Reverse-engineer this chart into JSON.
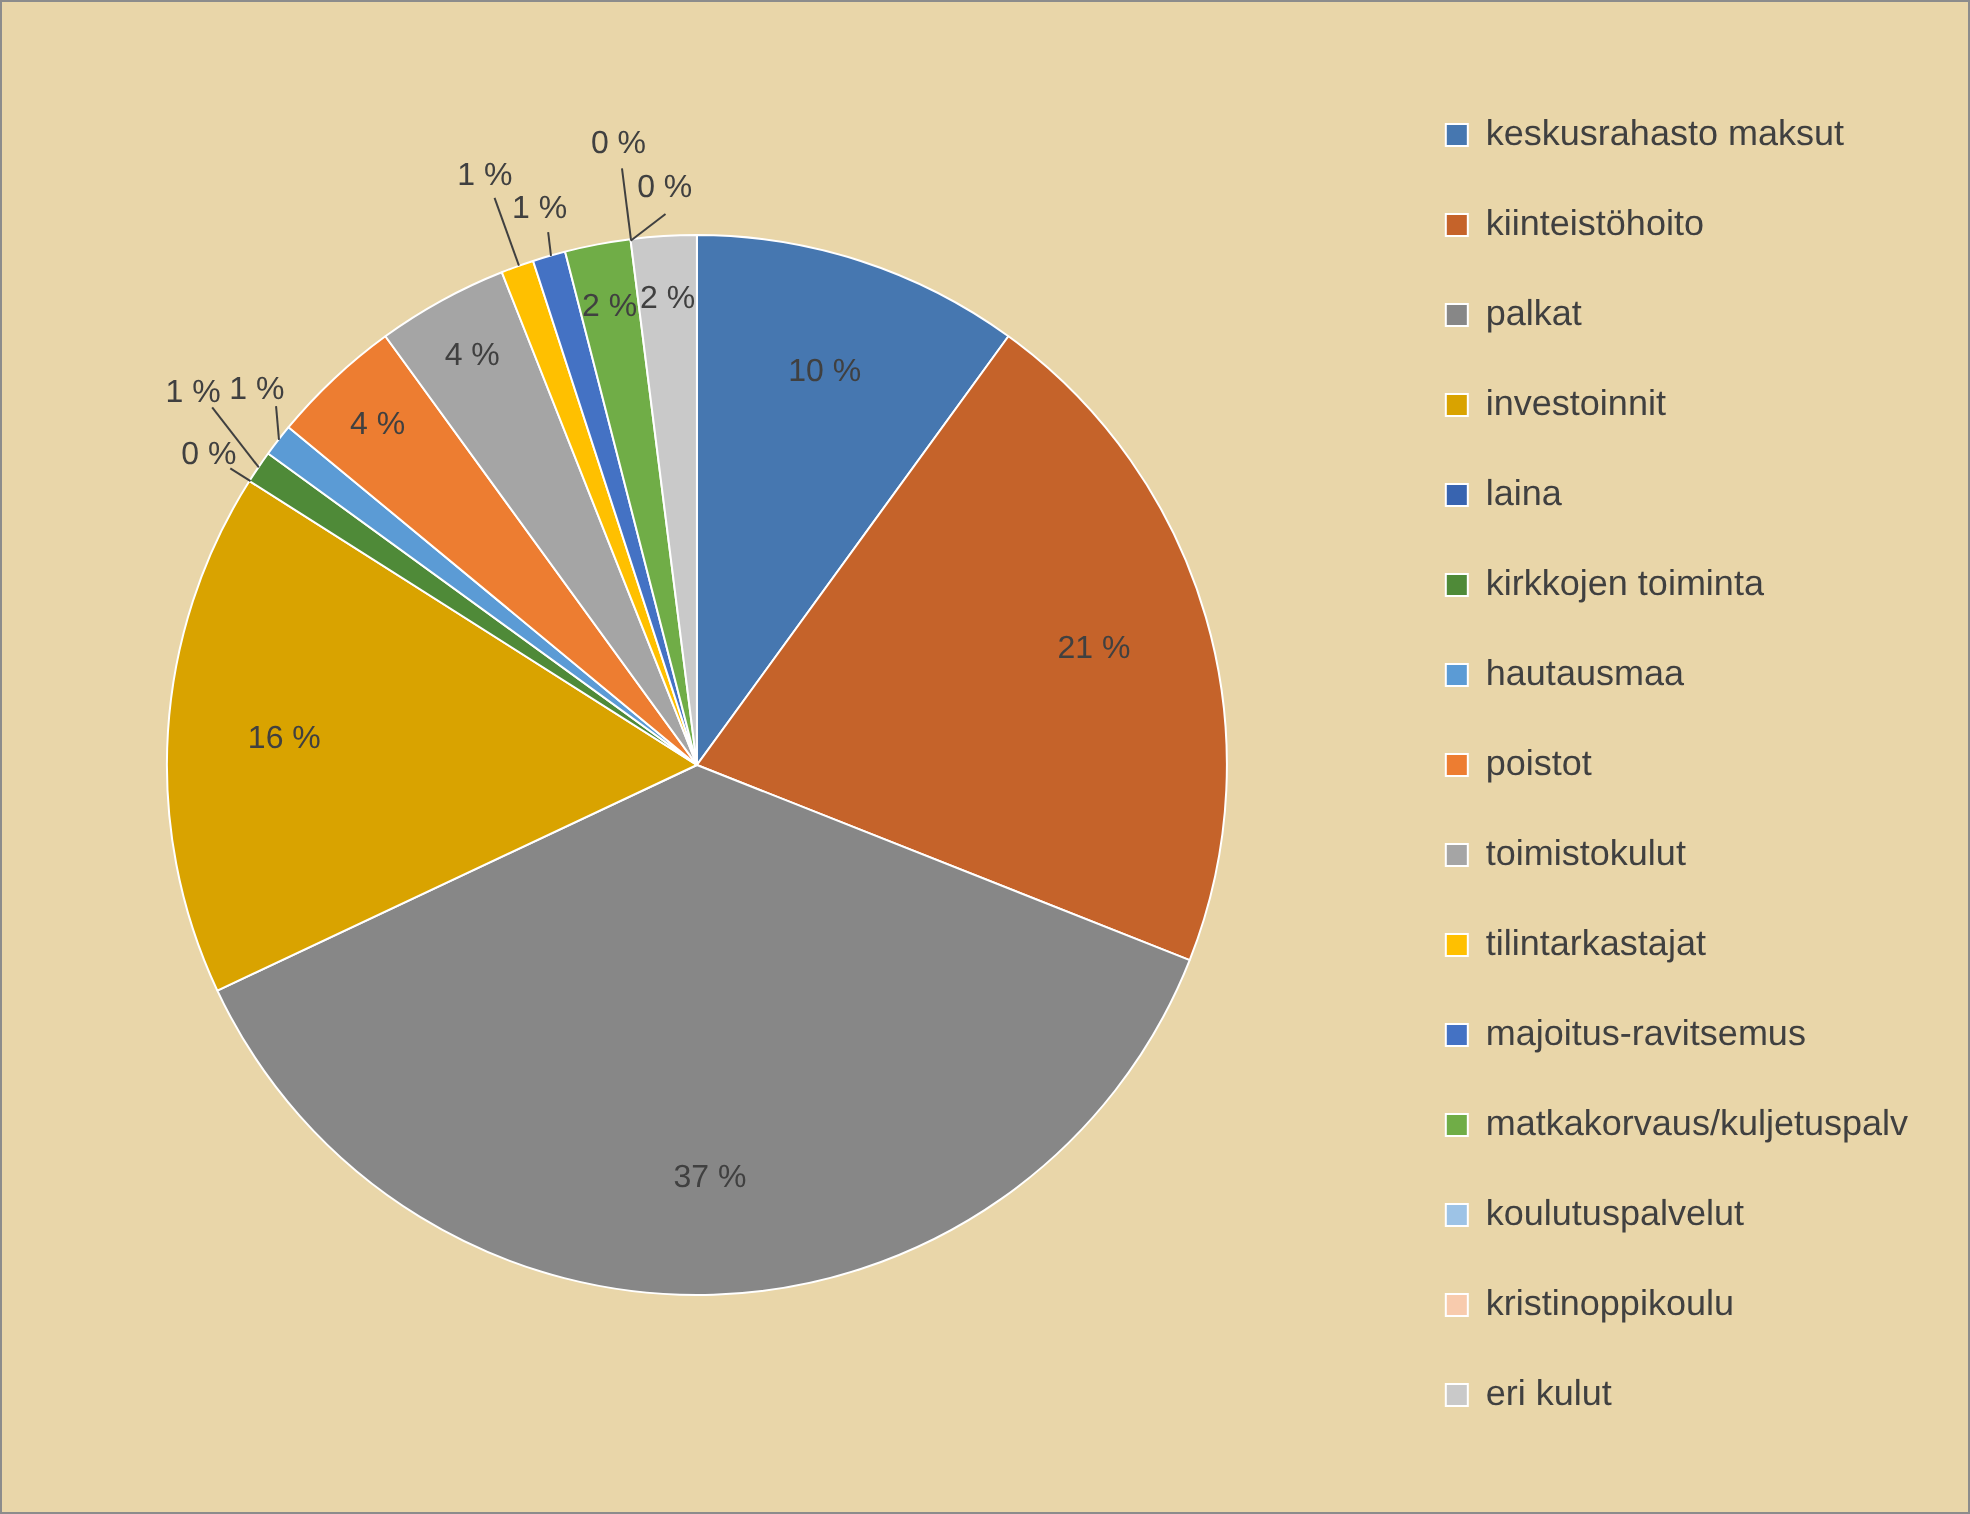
{
  "chart_data": {
    "type": "pie",
    "categories": [
      "keskusrahasto maksut",
      "kiinteistöhoito",
      "palkat",
      "investoinnit",
      "laina",
      "kirkkojen toiminta",
      "hautausmaa",
      "poistot",
      "toimistokulut",
      "tilintarkastajat",
      "majoitus-ravitsemus",
      "matkakorvaus/kuljetuspalv",
      "koulutuspalvelut",
      "kristinoppikoulu",
      "eri kulut"
    ],
    "values": [
      10,
      21,
      37,
      16,
      0,
      1,
      1,
      4,
      4,
      1,
      1,
      2,
      0,
      0,
      2
    ],
    "value_labels": [
      "10 %",
      "21 %",
      "37 %",
      "16 %",
      "0 %",
      "1 %",
      "1 %",
      "4 %",
      "4 %",
      "1 %",
      "1 %",
      "2 %",
      "0 %",
      "0 %",
      "2 %"
    ],
    "colors": [
      "#4677b0",
      "#c5632a",
      "#878787",
      "#d9a300",
      "#3864b0",
      "#4f8a38",
      "#5b9bd5",
      "#ed7d31",
      "#a5a5a5",
      "#ffc000",
      "#4472c4",
      "#70ad47",
      "#9dc3e6",
      "#f8cbad",
      "#c9c9c9"
    ],
    "legend": "right"
  }
}
